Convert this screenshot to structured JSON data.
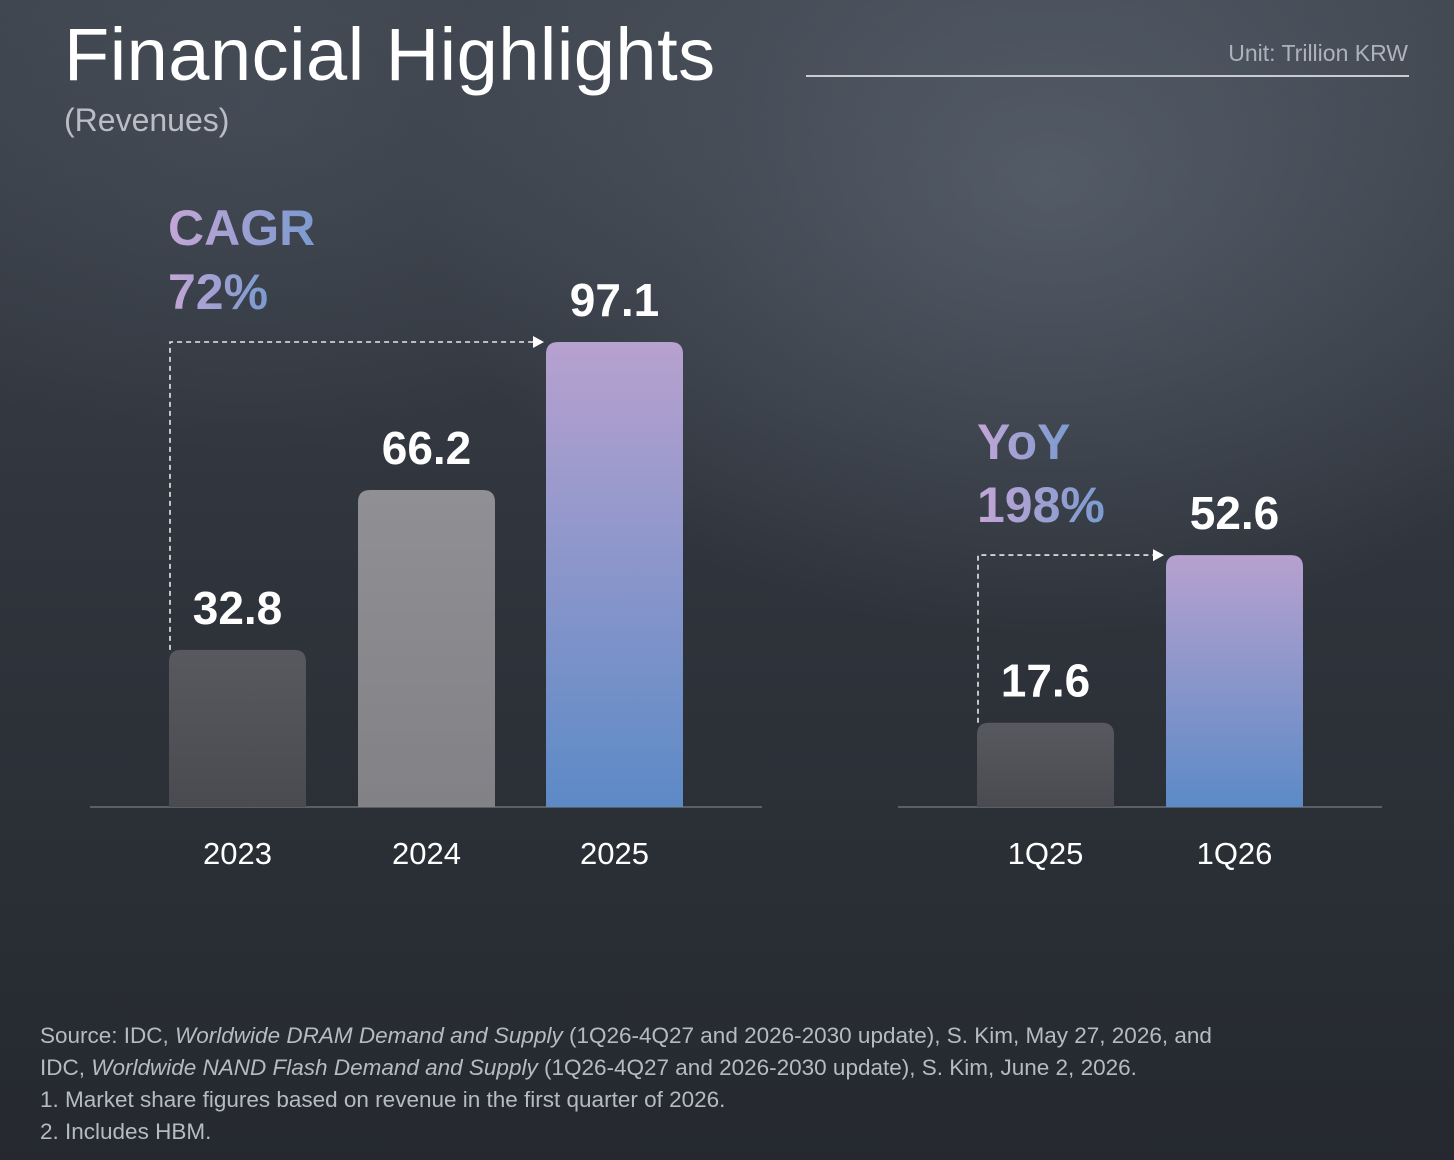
{
  "header": {
    "title": "Financial Highlights",
    "subtitle": "(Revenues)",
    "unit": "Unit: Trillion KRW"
  },
  "annotations": {
    "cagr_label": "CAGR",
    "cagr_value": "72%",
    "yoy_label": "YoY",
    "yoy_value": "198%"
  },
  "colors": {
    "bar_dark": "#4e4f54",
    "bar_gray": "#87878b",
    "bar_highlight_top": "#b7a1cf",
    "bar_highlight_bottom": "#5c8ac6",
    "growth_text": "#a6a2d6"
  },
  "chart_data": [
    {
      "type": "bar",
      "categories": [
        "2023",
        "2024",
        "2025"
      ],
      "values": [
        32.8,
        66.2,
        97.1
      ],
      "value_labels": [
        "32.8",
        "66.2",
        "97.1"
      ],
      "highlight": [
        false,
        false,
        true
      ],
      "ylim": [
        0,
        97.1
      ],
      "grid": false
    },
    {
      "type": "bar",
      "categories": [
        "1Q25",
        "1Q26"
      ],
      "values": [
        17.6,
        52.6
      ],
      "value_labels": [
        "17.6",
        "52.6"
      ],
      "highlight": [
        false,
        true
      ],
      "ylim": [
        0,
        97.1
      ],
      "grid": false
    }
  ],
  "footnotes": {
    "line1": {
      "prefix": "Source: IDC, ",
      "italic": "Worldwide DRAM Demand and Supply",
      "suffix": " (1Q26-4Q27 and 2026-2030 update), S. Kim, May 27, 2026, and"
    },
    "line2": {
      "prefix": "IDC, ",
      "italic": "Worldwide NAND Flash Demand and Supply",
      "suffix": " (1Q26-4Q27 and 2026-2030 update), S. Kim, June 2, 2026."
    },
    "line3": "1. Market share figures based on revenue in the first quarter of 2026.",
    "line4": "2. Includes HBM."
  }
}
